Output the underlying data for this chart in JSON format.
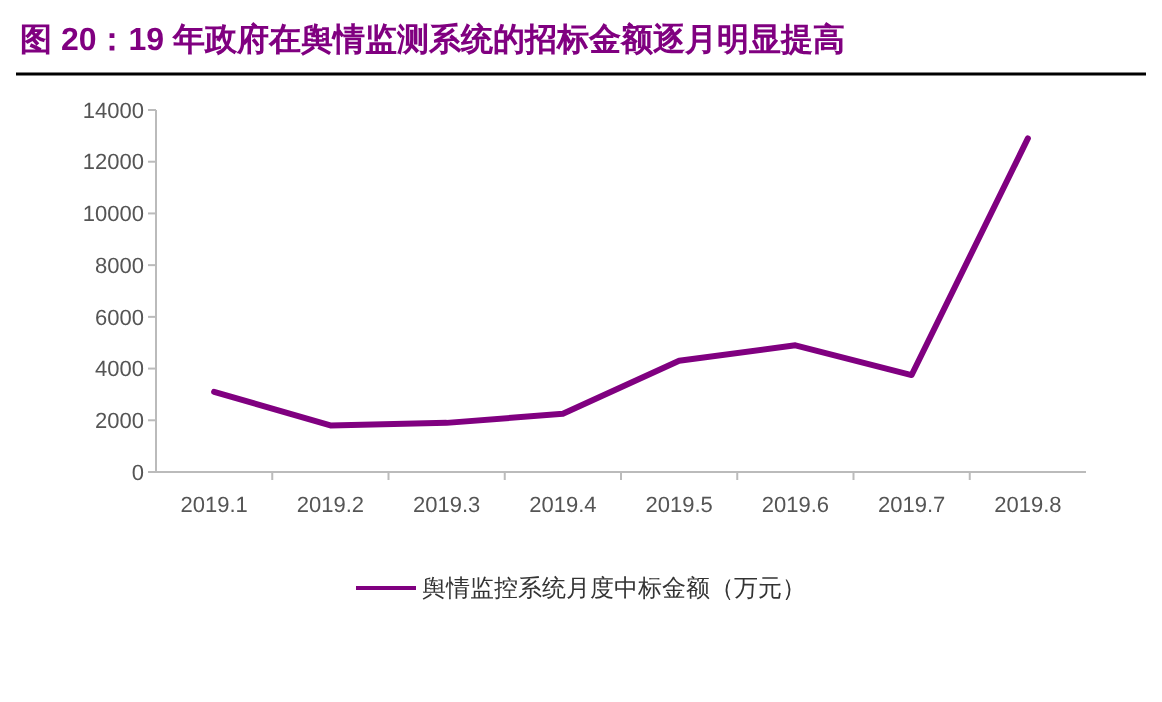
{
  "chart_data": {
    "type": "line",
    "title": "图 20：19 年政府在舆情监测系统的招标金额逐月明显提高",
    "categories": [
      "2019.1",
      "2019.2",
      "2019.3",
      "2019.4",
      "2019.5",
      "2019.6",
      "2019.7",
      "2019.8"
    ],
    "series": [
      {
        "name": "舆情监控系统月度中标金额（万元）",
        "color": "#800080",
        "values": [
          3100,
          1800,
          1900,
          2250,
          4300,
          4900,
          3750,
          12900
        ]
      }
    ],
    "ylim": [
      0,
      14000
    ],
    "yticks": [
      0,
      2000,
      4000,
      6000,
      8000,
      10000,
      12000,
      14000
    ],
    "grid": false,
    "legend": "bottom",
    "marker": "none",
    "line_style": "solid"
  }
}
